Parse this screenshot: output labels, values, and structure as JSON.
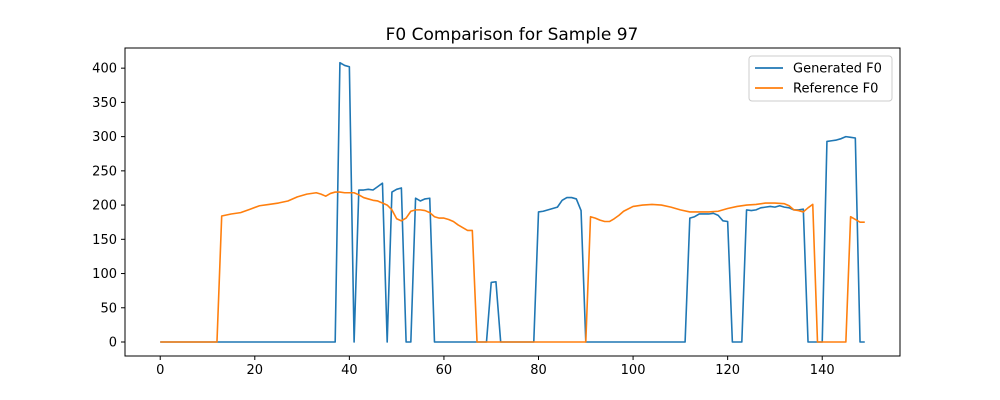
{
  "chart_data": {
    "type": "line",
    "title": "F0 Comparison for Sample 97",
    "xlabel": "",
    "ylabel": "",
    "xlim": [
      -7.45,
      156.45
    ],
    "ylim": [
      -20.45,
      429.45
    ],
    "xticks": [
      0,
      20,
      40,
      60,
      80,
      100,
      120,
      140
    ],
    "yticks": [
      0,
      50,
      100,
      150,
      200,
      250,
      300,
      350,
      400
    ],
    "grid": false,
    "legend_position": "top-right",
    "series": [
      {
        "name": "Generated F0",
        "color": "#1f77b4",
        "x": [
          0,
          12,
          13,
          30,
          37,
          38,
          39,
          40,
          41,
          42,
          43,
          44,
          45,
          46,
          47,
          48,
          49,
          50,
          51,
          52,
          53,
          54,
          55,
          56,
          57,
          58,
          59,
          60,
          68,
          69,
          70,
          71,
          72,
          78,
          79,
          80,
          81,
          82,
          83,
          84,
          85,
          86,
          87,
          88,
          89,
          90,
          91,
          110,
          111,
          112,
          113,
          114,
          115,
          116,
          117,
          118,
          119,
          120,
          121,
          122,
          123,
          124,
          125,
          126,
          127,
          128,
          129,
          130,
          131,
          132,
          133,
          134,
          135,
          136,
          137,
          138,
          139,
          140,
          141,
          142,
          143,
          144,
          145,
          146,
          147,
          148,
          149
        ],
        "y": [
          0,
          0,
          0,
          0,
          0,
          408,
          404,
          402,
          0,
          222,
          222,
          223,
          222,
          227,
          232,
          0,
          219,
          223,
          225,
          0,
          0,
          210,
          206,
          209,
          210,
          0,
          0,
          0,
          0,
          0,
          87,
          88,
          0,
          0,
          0,
          190,
          191,
          193,
          195,
          197,
          207,
          211,
          211,
          209,
          192,
          0,
          0,
          0,
          0,
          181,
          183,
          187,
          187,
          187,
          188,
          185,
          177,
          176,
          0,
          0,
          0,
          193,
          192,
          193,
          196,
          197,
          198,
          197,
          199,
          197,
          196,
          193,
          193,
          194,
          0,
          0,
          0,
          0,
          293,
          294,
          295,
          297,
          300,
          299,
          298,
          0,
          0
        ]
      },
      {
        "name": "Reference F0",
        "color": "#ff7f0e",
        "x": [
          0,
          12,
          13,
          15,
          17,
          19,
          21,
          23,
          25,
          27,
          29,
          31,
          33,
          34,
          35,
          36,
          37,
          38,
          39,
          40,
          41,
          42,
          43,
          44,
          45,
          46,
          47,
          48,
          49,
          50,
          51,
          52,
          53,
          54,
          55,
          56,
          57,
          58,
          59,
          60,
          61,
          62,
          63,
          64,
          65,
          66,
          67,
          68,
          69,
          80,
          89,
          90,
          91,
          92,
          93,
          94,
          95,
          96,
          97,
          98,
          100,
          102,
          104,
          106,
          108,
          110,
          112,
          114,
          116,
          118,
          120,
          122,
          124,
          126,
          128,
          130,
          132,
          133,
          134,
          135,
          136,
          137,
          138,
          139,
          140,
          144,
          145,
          146,
          147,
          148,
          149
        ],
        "y": [
          0,
          0,
          184,
          187,
          189,
          194,
          199,
          201,
          203,
          206,
          212,
          216,
          218,
          216,
          213,
          217,
          219,
          219,
          218,
          218,
          218,
          215,
          211,
          209,
          207,
          206,
          203,
          200,
          193,
          180,
          177,
          181,
          191,
          193,
          193,
          192,
          189,
          183,
          181,
          181,
          179,
          176,
          171,
          167,
          163,
          163,
          0,
          0,
          0,
          0,
          0,
          0,
          183,
          181,
          178,
          176,
          176,
          180,
          185,
          191,
          198,
          200,
          201,
          200,
          197,
          193,
          190,
          190,
          190,
          191,
          195,
          198,
          200,
          201,
          203,
          203,
          202,
          199,
          193,
          192,
          190,
          196,
          201,
          0,
          0,
          0,
          0,
          183,
          179,
          175,
          175
        ]
      }
    ]
  }
}
